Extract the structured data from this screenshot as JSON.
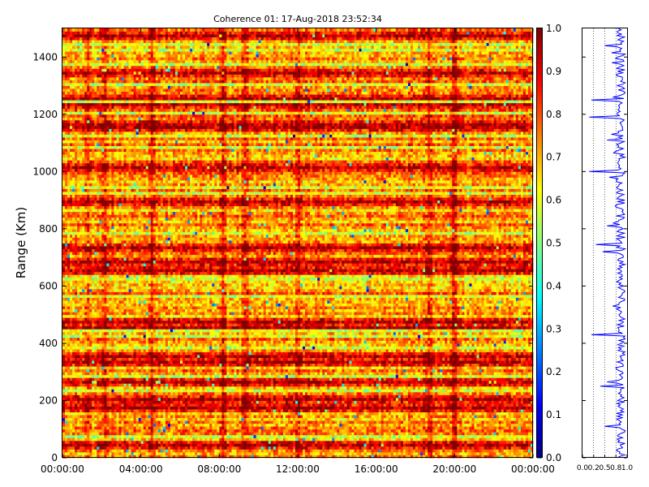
{
  "chart_data": [
    {
      "type": "heatmap",
      "title": "Coherence 01: 17-Aug-2018 23:52:34",
      "xlabel": "",
      "ylabel": "Range (Km)",
      "x_ticks": [
        "00:00:00",
        "04:00:00",
        "08:00:00",
        "12:00:00",
        "16:00:00",
        "20:00:00",
        "00:00:00"
      ],
      "y_ticks": [
        0,
        200,
        400,
        600,
        800,
        1000,
        1200,
        1400
      ],
      "xlim_hours": [
        0,
        24
      ],
      "ylim": [
        0,
        1500
      ],
      "value_range": [
        0,
        1
      ],
      "colormap": "jet",
      "colorbar_ticks": [
        "0.0",
        "0.1",
        "0.2",
        "0.3",
        "0.4",
        "0.5",
        "0.6",
        "0.7",
        "0.8",
        "0.9",
        "1.0"
      ],
      "strong_coherence_rows_km": [
        40,
        175,
        205,
        260,
        330,
        350,
        455,
        470,
        650,
        680,
        735,
        890,
        1010,
        1150,
        1165,
        1235,
        1255,
        1340,
        1475
      ],
      "weak_coherence_rows_km": [
        75,
        230,
        280,
        385,
        420,
        440,
        560,
        625,
        785,
        920,
        940,
        1085,
        1125,
        1200,
        1245,
        1305,
        1375,
        1420,
        1445
      ],
      "dark_time_bands_hours": [
        1.3,
        2.2,
        4.6,
        8.2,
        9.3,
        12.0,
        18.7,
        19.9,
        20.1
      ]
    },
    {
      "type": "line",
      "x_ticks": [
        "0.0",
        "0.2",
        "0.5",
        "0.8",
        "1.0"
      ],
      "xlim": [
        0,
        1
      ],
      "ylim": [
        0,
        1500
      ],
      "grid_x": [
        0.25,
        0.5,
        0.75
      ],
      "color": "#0000ff",
      "dips": [
        {
          "range_km": 110,
          "value": 0.5
        },
        {
          "range_km": 250,
          "value": 0.4
        },
        {
          "range_km": 265,
          "value": 0.55
        },
        {
          "range_km": 430,
          "value": 0.2
        },
        {
          "range_km": 720,
          "value": 0.45
        },
        {
          "range_km": 745,
          "value": 0.3
        },
        {
          "range_km": 810,
          "value": 0.55
        },
        {
          "range_km": 980,
          "value": 0.6
        },
        {
          "range_km": 1000,
          "value": 0.15
        },
        {
          "range_km": 1110,
          "value": 0.55
        },
        {
          "range_km": 1190,
          "value": 0.15
        },
        {
          "range_km": 1250,
          "value": 0.2
        },
        {
          "range_km": 1440,
          "value": 0.5
        }
      ]
    }
  ]
}
